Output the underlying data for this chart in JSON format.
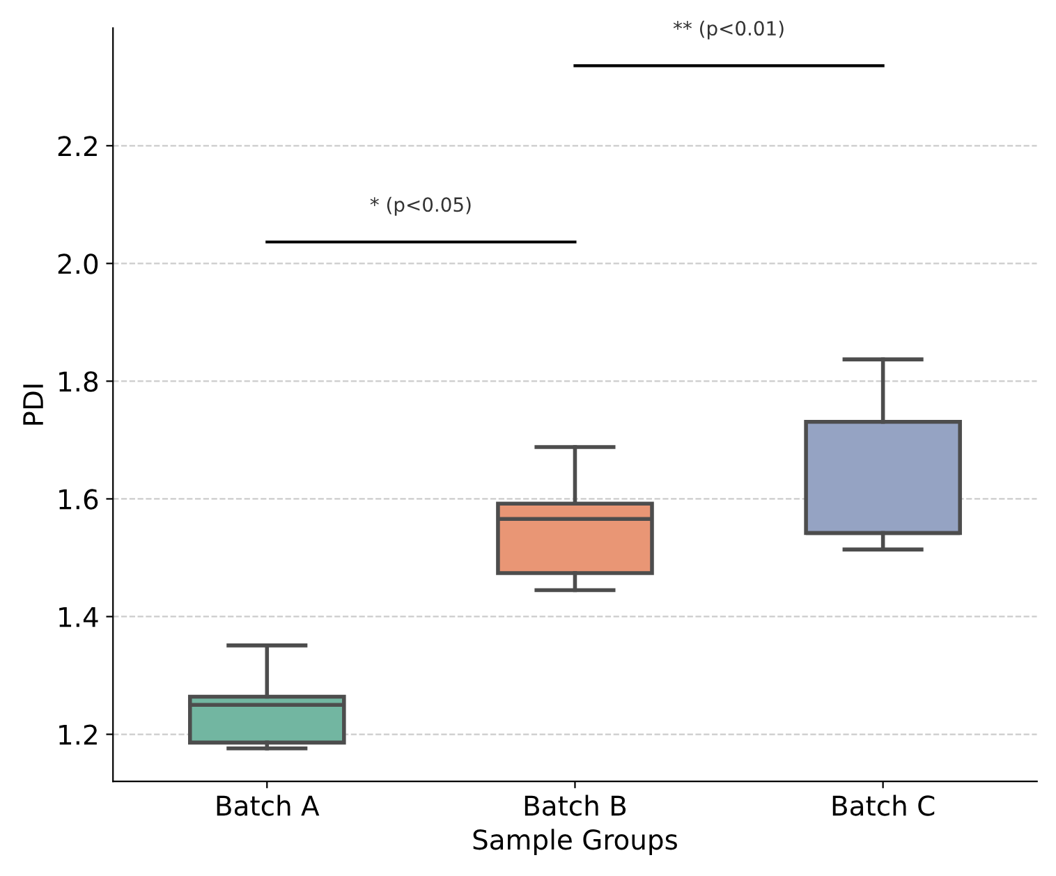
{
  "chart_data": {
    "type": "box",
    "xlabel": "Sample Groups",
    "ylabel": "PDI",
    "categories": [
      "Batch A",
      "Batch B",
      "Batch C"
    ],
    "colors": [
      "#72b6a1",
      "#e99675",
      "#95a3c3"
    ],
    "boxes": [
      {
        "low": 1.176,
        "q1": 1.186,
        "median": 1.25,
        "q3": 1.264,
        "high": 1.351
      },
      {
        "low": 1.445,
        "q1": 1.474,
        "median": 1.566,
        "q3": 1.592,
        "high": 1.688
      },
      {
        "low": 1.514,
        "q1": 1.542,
        "median": 1.542,
        "q3": 1.731,
        "high": 1.837
      }
    ],
    "ylim": [
      1.12,
      2.4
    ],
    "yticks": [
      1.2,
      1.4,
      1.6,
      1.8,
      {
        "value": 2,
        "label": "2.0"
      },
      2.2
    ],
    "grid": "y",
    "annotations": [
      "* (p<0.05)",
      "** (p<0.01)"
    ]
  }
}
